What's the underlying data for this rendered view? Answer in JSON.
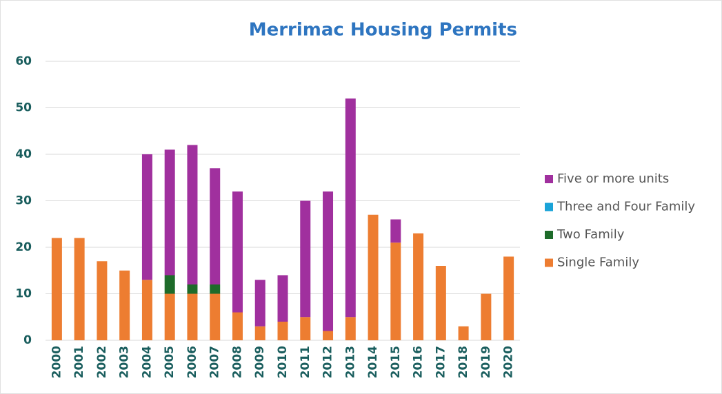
{
  "chart_data": {
    "type": "stacked_bar",
    "title": "Merrimac Housing Permits",
    "categories": [
      "2000",
      "2001",
      "2002",
      "2003",
      "2004",
      "2005",
      "2006",
      "2007",
      "2008",
      "2009",
      "2010",
      "2011",
      "2012",
      "2013",
      "2014",
      "2015",
      "2016",
      "2017",
      "2018",
      "2019",
      "2020"
    ],
    "series": [
      {
        "name": "Single Family",
        "color": "#ed7d31",
        "values": [
          22,
          22,
          17,
          15,
          13,
          10,
          10,
          10,
          6,
          3,
          4,
          5,
          2,
          5,
          27,
          21,
          23,
          16,
          3,
          10,
          18
        ]
      },
      {
        "name": "Two Family",
        "color": "#1e6b2a",
        "values": [
          0,
          0,
          0,
          0,
          0,
          4,
          2,
          2,
          0,
          0,
          0,
          0,
          0,
          0,
          0,
          0,
          0,
          0,
          0,
          0,
          0
        ]
      },
      {
        "name": "Three and Four Family",
        "color": "#1aa3d8",
        "values": [
          0,
          0,
          0,
          0,
          0,
          0,
          0,
          0,
          0,
          0,
          0,
          0,
          0,
          0,
          0,
          0,
          0,
          0,
          0,
          0,
          0
        ]
      },
      {
        "name": "Five or more units",
        "color": "#a0309e",
        "values": [
          0,
          0,
          0,
          0,
          27,
          27,
          30,
          25,
          26,
          10,
          10,
          25,
          30,
          47,
          0,
          5,
          0,
          0,
          0,
          0,
          0
        ]
      }
    ],
    "ylim": [
      0,
      60
    ],
    "yticks": [
      0,
      10,
      20,
      30,
      40,
      50,
      60
    ],
    "grid": true,
    "legend": "right"
  }
}
